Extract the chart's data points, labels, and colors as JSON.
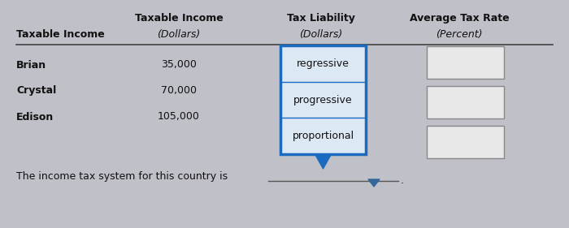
{
  "bg_color": "#c0c0c8",
  "font_color": "#111111",
  "header_line_color": "#444444",
  "dropdown_border_color": "#1a6bbf",
  "dropdown_bg": "#dde8f5",
  "answer_box_border": "#888888",
  "answer_box_bg": "#e8e8e8",
  "footer_line_color": "#555555",
  "footer_arrow_color": "#336699",
  "col1_label": "Taxable Income",
  "col1_sub": "(Dollars)",
  "col2_label": "Tax Liability",
  "col2_sub": "(Dollars)",
  "col3_label": "Average Tax Rate",
  "col3_sub": "(Percent)",
  "row_label": "Taxable Income",
  "rows": [
    {
      "name": "Brian",
      "income": "35,000"
    },
    {
      "name": "Crystal",
      "income": "70,000"
    },
    {
      "name": "Edison",
      "income": "105,000"
    }
  ],
  "dropdown_options": [
    "regressive",
    "progressive",
    "proportional"
  ],
  "footer_text": "The income tax system for this country is",
  "figw": 7.0,
  "figh": 2.81,
  "dpi": 100
}
